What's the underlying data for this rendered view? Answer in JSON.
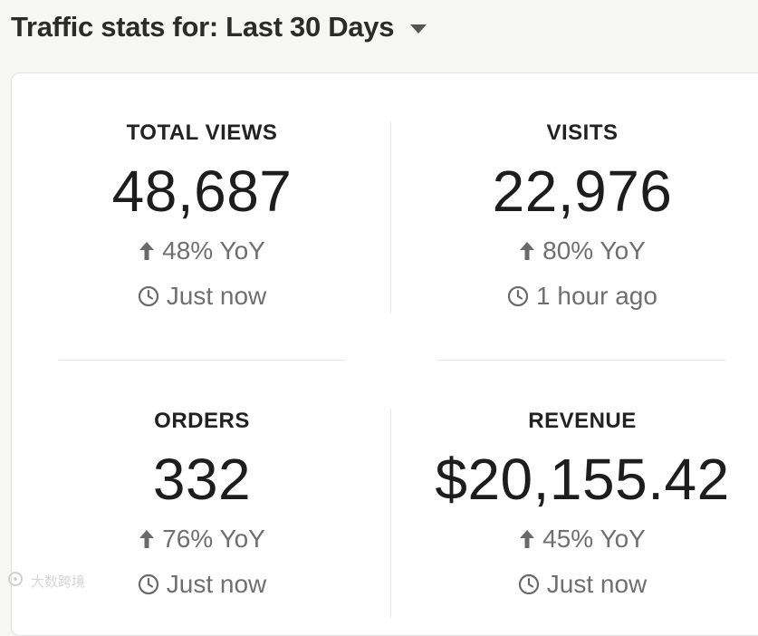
{
  "header": {
    "title": "Traffic stats for: Last 30 Days",
    "dropdown_icon": "chevron-down-icon"
  },
  "stats": [
    {
      "label": "TOTAL VIEWS",
      "value": "48,687",
      "change": "48% YoY",
      "change_direction": "up",
      "updated": "Just now"
    },
    {
      "label": "VISITS",
      "value": "22,976",
      "change": "80% YoY",
      "change_direction": "up",
      "updated": "1 hour ago"
    },
    {
      "label": "ORDERS",
      "value": "332",
      "change": "76% YoY",
      "change_direction": "up",
      "updated": "Just now"
    },
    {
      "label": "REVENUE",
      "value": "$20,155.42",
      "change": "45% YoY",
      "change_direction": "up",
      "updated": "Just now"
    }
  ],
  "watermark": {
    "text": "大数跨境"
  },
  "colors": {
    "background": "#f6f6f4",
    "card": "#ffffff",
    "text": "#222222",
    "muted": "#6f6f6f",
    "divider": "#e6e6e3"
  }
}
